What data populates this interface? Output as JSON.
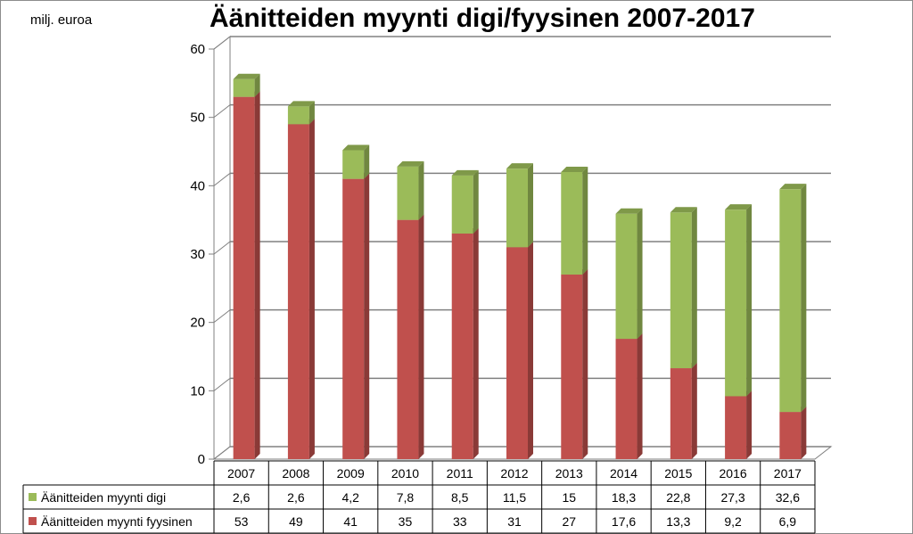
{
  "unit_label": "milj. euroa",
  "colors": {
    "digi": "#9bbb59",
    "fyysinen": "#c0504d"
  },
  "chart_data": {
    "type": "bar",
    "stacked": true,
    "title": "Äänitteiden myynti digi/fyysinen 2007-2017",
    "ylabel": "milj. euroa",
    "ylim": [
      0,
      60
    ],
    "yticks": [
      "0",
      "10",
      "20",
      "30",
      "40",
      "50",
      "60"
    ],
    "categories": [
      "2007",
      "2008",
      "2009",
      "2010",
      "2011",
      "2012",
      "2013",
      "2014",
      "2015",
      "2016",
      "2017"
    ],
    "series": [
      {
        "name": "Äänitteiden myynti fyysinen",
        "values": [
          53,
          49,
          41,
          35,
          33,
          31,
          27,
          17.6,
          13.3,
          9.2,
          6.9
        ],
        "labels": [
          "53",
          "49",
          "41",
          "35",
          "33",
          "31",
          "27",
          "17,6",
          "13,3",
          "9,2",
          "6,9"
        ]
      },
      {
        "name": "Äänitteiden myynti digi",
        "values": [
          2.6,
          2.6,
          4.2,
          7.8,
          8.5,
          11.5,
          15,
          18.3,
          22.8,
          27.3,
          32.6
        ],
        "labels": [
          "2,6",
          "2,6",
          "4,2",
          "7,8",
          "8,5",
          "11,5",
          "15",
          "18,3",
          "22,8",
          "27,3",
          "32,6"
        ]
      }
    ],
    "grid": true,
    "legend": "data-table"
  }
}
